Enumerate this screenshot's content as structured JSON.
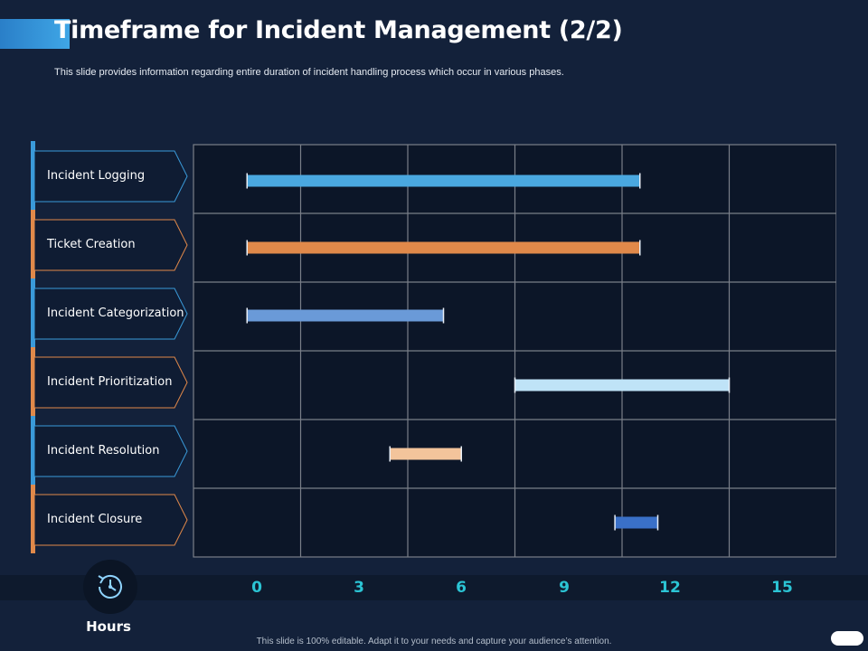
{
  "slide": {
    "title": "Timeframe for Incident Management (2/2)",
    "subtitle": "This slide provides information regarding entire duration of incident handling process which occur in various phases.",
    "footer": "This slide is 100% editable.  Adapt it to your needs and capture your audience’s attention.",
    "hours_label": "Hours"
  },
  "colors": {
    "background": "#13213a",
    "accent_blue": "#3a9ad9",
    "accent_orange": "#e0894a",
    "grid_line": "#7a7f88",
    "grid_fill": "#0c1628",
    "tick_color": "#2bc4d4"
  },
  "icons": {
    "hours": "clock-history-icon"
  },
  "chart_data": {
    "type": "gantt",
    "x_ticks": [
      "0",
      "3",
      "6",
      "9",
      "12",
      "15"
    ],
    "xlim": [
      0,
      18
    ],
    "tasks": [
      {
        "name": "Incident Logging",
        "start": 1.5,
        "end": 12.5,
        "color": "#4aa8e0"
      },
      {
        "name": "Ticket Creation",
        "start": 1.5,
        "end": 12.5,
        "color": "#e0894a"
      },
      {
        "name": "Incident Categorization",
        "start": 1.5,
        "end": 7.0,
        "color": "#6a9ad8"
      },
      {
        "name": "Incident Prioritization",
        "start": 9.0,
        "end": 15.0,
        "color": "#bfe3f7"
      },
      {
        "name": "Incident Resolution",
        "start": 5.5,
        "end": 7.5,
        "color": "#f3c49b"
      },
      {
        "name": "Incident Closure",
        "start": 11.8,
        "end": 13.0,
        "color": "#3a70c8"
      }
    ],
    "phase_accent_colors": [
      "#3a9ad9",
      "#e0894a",
      "#3a9ad9",
      "#e0894a",
      "#3a9ad9",
      "#e0894a"
    ]
  }
}
